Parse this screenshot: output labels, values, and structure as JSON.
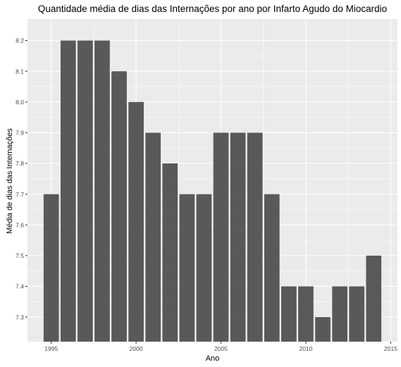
{
  "chart_data": {
    "type": "bar",
    "title": "Quantidade média de dias das Internações por ano por Infarto Agudo do Miocardio",
    "xlabel": "Ano",
    "ylabel": "Média de dias das Internações",
    "x": [
      1995,
      1996,
      1997,
      1998,
      1999,
      2000,
      2001,
      2002,
      2003,
      2004,
      2005,
      2006,
      2007,
      2008,
      2009,
      2010,
      2011,
      2012,
      2013,
      2014
    ],
    "values": [
      7.7,
      8.2,
      8.2,
      8.2,
      8.1,
      8.0,
      7.9,
      7.8,
      7.7,
      7.7,
      7.9,
      7.9,
      7.9,
      7.7,
      7.4,
      7.4,
      7.3,
      7.4,
      7.4,
      7.5
    ],
    "xlim": [
      1993.6,
      2015.4
    ],
    "ylim": [
      7.22,
      8.27
    ],
    "x_ticks": [
      1995,
      2000,
      2005,
      2010,
      2015
    ],
    "y_ticks": [
      7.3,
      7.4,
      7.5,
      7.6,
      7.7,
      7.8,
      7.9,
      8.0,
      8.1,
      8.2
    ],
    "grid": true,
    "colors": {
      "bar": "#595959",
      "panel": "#ebebeb",
      "grid": "#ffffff"
    }
  }
}
